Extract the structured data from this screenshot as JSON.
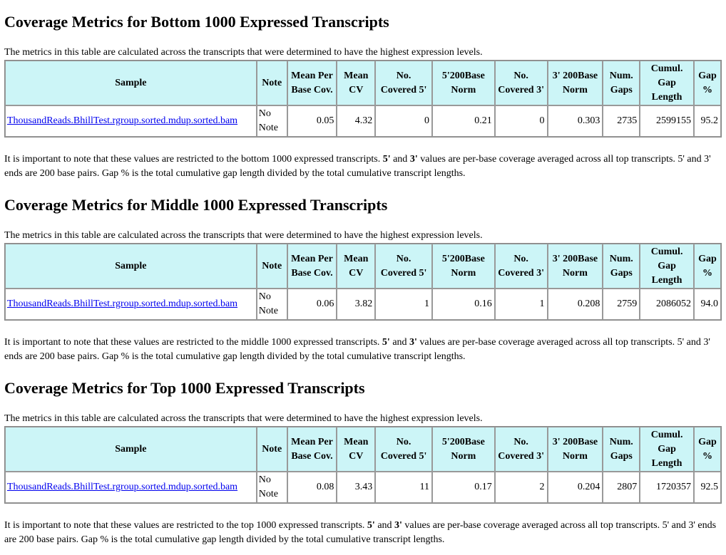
{
  "sections": [
    {
      "title": "Coverage Metrics for Bottom 1000 Expressed Transcripts",
      "description": "The metrics in this table are calculated across the transcripts that were determined to have the highest expression levels.",
      "headers": [
        "Sample",
        "Note",
        "Mean Per Base Cov.",
        "Mean CV",
        "No. Covered 5'",
        "5'200Base Norm",
        "No. Covered 3'",
        "3' 200Base Norm",
        "Num. Gaps",
        "Cumul. Gap Length",
        "Gap %"
      ],
      "row": {
        "sample": "ThousandReads.BhillTest.rgroup.sorted.mdup.sorted.bam",
        "note": "No Note",
        "mean_per_base_cov": "0.05",
        "mean_cv": "4.32",
        "no_covered_5": "0",
        "norm_5_200": "0.21",
        "no_covered_3": "0",
        "norm_3_200": "0.303",
        "num_gaps": "2735",
        "cumul_gap_length": "2599155",
        "gap_pct": "95.2"
      },
      "note_pre": "It is important to note that these values are restricted to the bottom 1000 expressed transcripts. ",
      "note_b1": "5'",
      "note_mid1": " and ",
      "note_b2": "3'",
      "note_post": " values are per-base coverage averaged across all top transcripts. 5' and 3' ends are 200 base pairs. Gap % is the total cumulative gap length divided by the total cumulative transcript lengths."
    },
    {
      "title": "Coverage Metrics for Middle 1000 Expressed Transcripts",
      "description": "The metrics in this table are calculated across the transcripts that were determined to have the highest expression levels.",
      "headers": [
        "Sample",
        "Note",
        "Mean Per Base Cov.",
        "Mean CV",
        "No. Covered 5'",
        "5'200Base Norm",
        "No. Covered 3'",
        "3' 200Base Norm",
        "Num. Gaps",
        "Cumul. Gap Length",
        "Gap %"
      ],
      "row": {
        "sample": "ThousandReads.BhillTest.rgroup.sorted.mdup.sorted.bam",
        "note": "No Note",
        "mean_per_base_cov": "0.06",
        "mean_cv": "3.82",
        "no_covered_5": "1",
        "norm_5_200": "0.16",
        "no_covered_3": "1",
        "norm_3_200": "0.208",
        "num_gaps": "2759",
        "cumul_gap_length": "2086052",
        "gap_pct": "94.0"
      },
      "note_pre": "It is important to note that these values are restricted to the middle 1000 expressed transcripts. ",
      "note_b1": "5'",
      "note_mid1": " and ",
      "note_b2": "3'",
      "note_post": " values are per-base coverage averaged across all top transcripts. 5' and 3' ends are 200 base pairs. Gap % is the total cumulative gap length divided by the total cumulative transcript lengths."
    },
    {
      "title": "Coverage Metrics for Top 1000 Expressed Transcripts",
      "description": "The metrics in this table are calculated across the transcripts that were determined to have the highest expression levels.",
      "headers": [
        "Sample",
        "Note",
        "Mean Per Base Cov.",
        "Mean CV",
        "No. Covered 5'",
        "5'200Base Norm",
        "No. Covered 3'",
        "3' 200Base Norm",
        "Num. Gaps",
        "Cumul. Gap Length",
        "Gap %"
      ],
      "row": {
        "sample": "ThousandReads.BhillTest.rgroup.sorted.mdup.sorted.bam",
        "note": "No Note",
        "mean_per_base_cov": "0.08",
        "mean_cv": "3.43",
        "no_covered_5": "11",
        "norm_5_200": "0.17",
        "no_covered_3": "2",
        "norm_3_200": "0.204",
        "num_gaps": "2807",
        "cumul_gap_length": "1720357",
        "gap_pct": "92.5"
      },
      "note_pre": "It is important to note that these values are restricted to the top 1000 expressed transcripts. ",
      "note_b1": "5'",
      "note_mid1": " and ",
      "note_b2": "3'",
      "note_post": " values are per-base coverage averaged across all top transcripts. 5' and 3' ends are 200 base pairs. Gap % is the total cumulative gap length divided by the total cumulative transcript lengths."
    }
  ],
  "colors": {
    "header_bg": "#ccf5f7",
    "link": "#0000ee",
    "border": "#999999"
  }
}
